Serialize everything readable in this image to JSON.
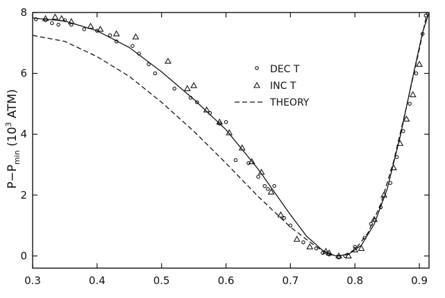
{
  "chart_data": {
    "type": "scatter",
    "title": "",
    "xlabel": "",
    "ylabel": {
      "prefix": "P−P",
      "sub": "min",
      "unit_open": " (10",
      "sup": "3",
      "unit_close": " ATM)"
    },
    "xlim": [
      0.3,
      0.915
    ],
    "ylim": [
      -0.4,
      8.0
    ],
    "x_ticks": [
      0.3,
      0.4,
      0.5,
      0.6,
      0.7,
      0.8,
      0.9
    ],
    "x_tick_labels": [
      "0.3",
      "0.4",
      "0.5",
      "0.6",
      "0.7",
      "0.8",
      "0.9"
    ],
    "y_ticks": [
      0,
      2,
      4,
      6,
      8
    ],
    "y_tick_labels": [
      "0",
      "2",
      "4",
      "6",
      "8"
    ],
    "grid": false,
    "legend_position": "upper-right",
    "series": [
      {
        "name": "DEC T",
        "marker": "circle",
        "points": [
          [
            0.305,
            7.78
          ],
          [
            0.32,
            7.75
          ],
          [
            0.33,
            7.65
          ],
          [
            0.34,
            7.6
          ],
          [
            0.35,
            7.75
          ],
          [
            0.36,
            7.6
          ],
          [
            0.38,
            7.45
          ],
          [
            0.4,
            7.4
          ],
          [
            0.42,
            7.25
          ],
          [
            0.43,
            7.05
          ],
          [
            0.455,
            6.9
          ],
          [
            0.465,
            6.65
          ],
          [
            0.48,
            6.3
          ],
          [
            0.49,
            6.0
          ],
          [
            0.52,
            5.5
          ],
          [
            0.545,
            5.2
          ],
          [
            0.555,
            5.05
          ],
          [
            0.575,
            4.7
          ],
          [
            0.59,
            4.35
          ],
          [
            0.6,
            4.4
          ],
          [
            0.615,
            3.15
          ],
          [
            0.635,
            3.05
          ],
          [
            0.65,
            2.6
          ],
          [
            0.66,
            2.3
          ],
          [
            0.665,
            2.2
          ],
          [
            0.675,
            2.3
          ],
          [
            0.69,
            1.25
          ],
          [
            0.7,
            1.0
          ],
          [
            0.72,
            0.45
          ],
          [
            0.74,
            0.25
          ],
          [
            0.75,
            0.1
          ],
          [
            0.76,
            0.05
          ],
          [
            0.775,
            -0.05
          ],
          [
            0.785,
            0.0
          ],
          [
            0.8,
            0.3
          ],
          [
            0.815,
            0.6
          ],
          [
            0.825,
            1.05
          ],
          [
            0.84,
            1.6
          ],
          [
            0.855,
            2.4
          ],
          [
            0.865,
            3.25
          ],
          [
            0.875,
            4.1
          ],
          [
            0.885,
            5.0
          ],
          [
            0.895,
            6.0
          ],
          [
            0.905,
            7.3
          ],
          [
            0.91,
            7.9
          ]
        ]
      },
      {
        "name": "INC T",
        "marker": "triangle",
        "points": [
          [
            0.32,
            7.8
          ],
          [
            0.335,
            7.85
          ],
          [
            0.345,
            7.8
          ],
          [
            0.36,
            7.7
          ],
          [
            0.39,
            7.55
          ],
          [
            0.405,
            7.45
          ],
          [
            0.43,
            7.3
          ],
          [
            0.46,
            7.2
          ],
          [
            0.51,
            6.4
          ],
          [
            0.54,
            5.5
          ],
          [
            0.55,
            5.6
          ],
          [
            0.57,
            4.8
          ],
          [
            0.59,
            4.4
          ],
          [
            0.605,
            4.05
          ],
          [
            0.625,
            3.55
          ],
          [
            0.64,
            3.1
          ],
          [
            0.655,
            2.75
          ],
          [
            0.67,
            2.1
          ],
          [
            0.685,
            1.35
          ],
          [
            0.71,
            0.55
          ],
          [
            0.73,
            0.3
          ],
          [
            0.755,
            0.15
          ],
          [
            0.76,
            0.1
          ],
          [
            0.775,
            0.0
          ],
          [
            0.79,
            0.0
          ],
          [
            0.8,
            0.2
          ],
          [
            0.81,
            0.25
          ],
          [
            0.83,
            1.2
          ],
          [
            0.845,
            2.0
          ],
          [
            0.86,
            2.9
          ],
          [
            0.87,
            3.7
          ],
          [
            0.88,
            4.5
          ],
          [
            0.89,
            5.3
          ],
          [
            0.9,
            6.3
          ]
        ]
      }
    ],
    "curves": [
      {
        "name": "",
        "style": "solid",
        "points": [
          [
            0.3,
            7.82
          ],
          [
            0.35,
            7.72
          ],
          [
            0.4,
            7.4
          ],
          [
            0.45,
            6.85
          ],
          [
            0.5,
            6.05
          ],
          [
            0.55,
            5.15
          ],
          [
            0.6,
            4.15
          ],
          [
            0.65,
            2.85
          ],
          [
            0.7,
            1.35
          ],
          [
            0.725,
            0.65
          ],
          [
            0.75,
            0.18
          ],
          [
            0.77,
            0.0
          ],
          [
            0.79,
            0.05
          ],
          [
            0.81,
            0.35
          ],
          [
            0.83,
            1.05
          ],
          [
            0.85,
            2.2
          ],
          [
            0.87,
            3.9
          ],
          [
            0.89,
            5.9
          ],
          [
            0.905,
            7.35
          ],
          [
            0.915,
            8.0
          ]
        ]
      },
      {
        "name": "THEORY",
        "style": "dashed",
        "points": [
          [
            0.3,
            7.25
          ],
          [
            0.35,
            7.05
          ],
          [
            0.4,
            6.55
          ],
          [
            0.45,
            5.9
          ],
          [
            0.5,
            5.05
          ],
          [
            0.55,
            4.1
          ],
          [
            0.6,
            3.05
          ],
          [
            0.65,
            1.95
          ],
          [
            0.7,
            0.95
          ],
          [
            0.74,
            0.3
          ],
          [
            0.76,
            0.05
          ],
          [
            0.78,
            0.0
          ],
          [
            0.8,
            0.2
          ],
          [
            0.82,
            0.75
          ],
          [
            0.84,
            1.7
          ],
          [
            0.86,
            3.1
          ],
          [
            0.88,
            4.9
          ],
          [
            0.9,
            6.8
          ],
          [
            0.912,
            8.0
          ]
        ]
      }
    ]
  }
}
